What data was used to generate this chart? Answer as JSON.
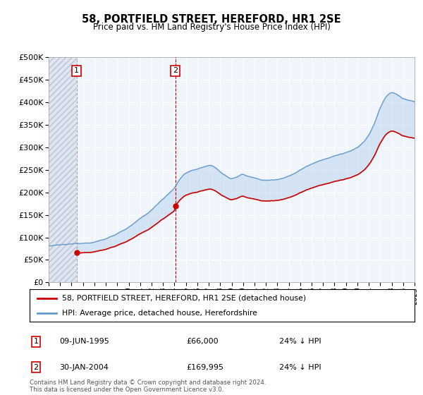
{
  "title": "58, PORTFIELD STREET, HEREFORD, HR1 2SE",
  "subtitle": "Price paid vs. HM Land Registry's House Price Index (HPI)",
  "ylim": [
    0,
    500000
  ],
  "yticks": [
    0,
    50000,
    100000,
    150000,
    200000,
    250000,
    300000,
    350000,
    400000,
    450000,
    500000
  ],
  "xlim_start": 1993.0,
  "xlim_end": 2025.0,
  "sale1_year": 1995.44,
  "sale1_price": 66000,
  "sale2_year": 2004.08,
  "sale2_price": 169995,
  "legend_line1": "58, PORTFIELD STREET, HEREFORD, HR1 2SE (detached house)",
  "legend_line2": "HPI: Average price, detached house, Herefordshire",
  "footer": "Contains HM Land Registry data © Crown copyright and database right 2024.\nThis data is licensed under the Open Government Licence v3.0.",
  "sale_color": "#cc0000",
  "hpi_color": "#6699cc",
  "bg_color": "#f0f4fb",
  "hatch_bg_color": "#e0e6f0"
}
